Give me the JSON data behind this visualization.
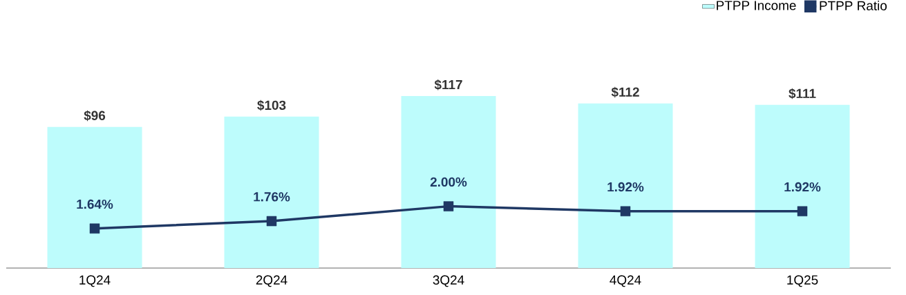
{
  "chart_data": {
    "type": "bar",
    "categories": [
      "1Q24",
      "2Q24",
      "3Q24",
      "4Q24",
      "1Q25"
    ],
    "series": [
      {
        "name": "PTPP Income",
        "color": "#bdfcfc",
        "values": [
          96,
          103,
          117,
          112,
          111
        ],
        "value_labels": [
          "$96",
          "$103",
          "$117",
          "$112",
          "$111"
        ]
      },
      {
        "name": "PTPP Ratio",
        "type": "line",
        "axis": "y2",
        "color": "#1f3864",
        "marker": "square",
        "values": [
          1.64,
          1.76,
          2.0,
          1.92,
          1.92
        ],
        "value_labels": [
          "1.64%",
          "1.76%",
          "2.00%",
          "1.92%",
          "1.92%"
        ]
      }
    ],
    "legend": "top right",
    "tick_labels": "x"
  }
}
